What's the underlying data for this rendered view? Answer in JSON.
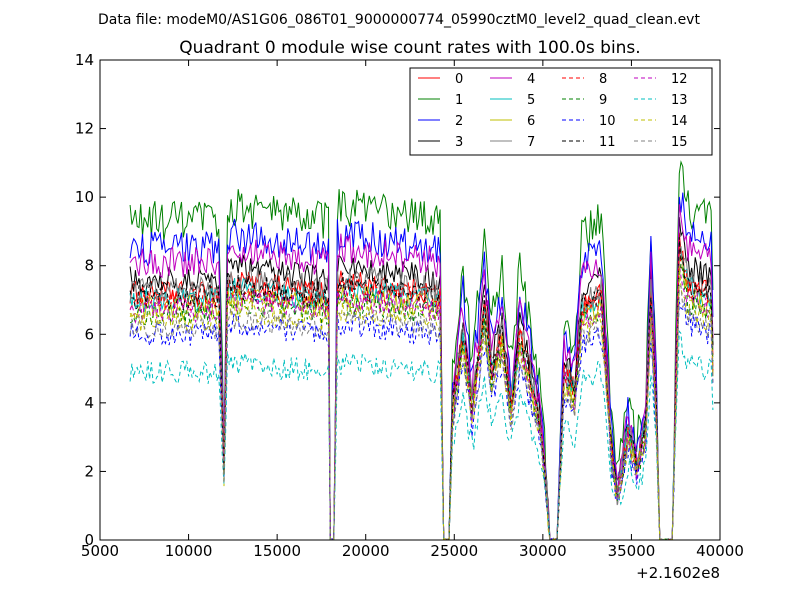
{
  "suptitle": "Data file: modeM0/AS1G06_086T01_9000000774_05990cztM0_level2_quad_clean.evt",
  "chart_data": {
    "type": "line",
    "title": "Quadrant 0 module wise count rates with 100.0s bins.",
    "xlabel": "",
    "ylabel": "",
    "xlim": [
      5000,
      40000
    ],
    "ylim": [
      0,
      14
    ],
    "x_offset_label": "+2.1602e8",
    "x_ticks": [
      5000,
      10000,
      15000,
      20000,
      25000,
      30000,
      35000,
      40000
    ],
    "x_tick_labels": [
      "5000",
      "10000",
      "15000",
      "20000",
      "25000",
      "30000",
      "35000",
      "40000"
    ],
    "y_ticks": [
      0,
      2,
      4,
      6,
      8,
      10,
      12,
      14
    ],
    "y_tick_labels": [
      "0",
      "2",
      "4",
      "6",
      "8",
      "10",
      "12",
      "14"
    ],
    "grid": false,
    "legend_position": "top-right",
    "x_start": 6700,
    "bin_size": 100,
    "series": [
      {
        "name": "0",
        "color": "#ff0000",
        "dash": "solid",
        "baseline": 7.2,
        "amplitude": 0.35
      },
      {
        "name": "1",
        "color": "#008000",
        "dash": "solid",
        "baseline": 9.3,
        "amplitude": 0.6
      },
      {
        "name": "2",
        "color": "#0000ff",
        "dash": "solid",
        "baseline": 8.5,
        "amplitude": 0.5
      },
      {
        "name": "3",
        "color": "#000000",
        "dash": "solid",
        "baseline": 7.6,
        "amplitude": 0.4
      },
      {
        "name": "4",
        "color": "#bf00bf",
        "dash": "solid",
        "baseline": 8.1,
        "amplitude": 0.45
      },
      {
        "name": "5",
        "color": "#00bfbf",
        "dash": "solid",
        "baseline": 7.0,
        "amplitude": 0.35
      },
      {
        "name": "6",
        "color": "#bfbf00",
        "dash": "solid",
        "baseline": 6.8,
        "amplitude": 0.35
      },
      {
        "name": "7",
        "color": "#808080",
        "dash": "solid",
        "baseline": 7.3,
        "amplitude": 0.4
      },
      {
        "name": "8",
        "color": "#ff0000",
        "dash": "dashed",
        "baseline": 7.0,
        "amplitude": 0.35
      },
      {
        "name": "9",
        "color": "#008000",
        "dash": "dashed",
        "baseline": 6.6,
        "amplitude": 0.35
      },
      {
        "name": "10",
        "color": "#0000ff",
        "dash": "dashed",
        "baseline": 6.0,
        "amplitude": 0.35
      },
      {
        "name": "11",
        "color": "#000000",
        "dash": "dashed",
        "baseline": 7.1,
        "amplitude": 0.4
      },
      {
        "name": "12",
        "color": "#bf00bf",
        "dash": "dashed",
        "baseline": 6.7,
        "amplitude": 0.35
      },
      {
        "name": "13",
        "color": "#00bfbf",
        "dash": "dashed",
        "baseline": 4.9,
        "amplitude": 0.35
      },
      {
        "name": "14",
        "color": "#bfbf00",
        "dash": "dashed",
        "baseline": 6.4,
        "amplitude": 0.35
      },
      {
        "name": "15",
        "color": "#808080",
        "dash": "dashed",
        "baseline": 6.2,
        "amplitude": 0.35
      }
    ],
    "shape": [
      [
        6700,
        1.0
      ],
      [
        11700,
        1.0
      ],
      [
        11900,
        0.55
      ],
      [
        12000,
        0.3
      ],
      [
        12200,
        1.05
      ],
      [
        17900,
        1.0
      ],
      [
        18000,
        0.0
      ],
      [
        18200,
        0.0
      ],
      [
        18400,
        1.05
      ],
      [
        24200,
        1.0
      ],
      [
        24400,
        0.0
      ],
      [
        24700,
        0.0
      ],
      [
        24900,
        0.55
      ],
      [
        25500,
        0.85
      ],
      [
        26000,
        0.55
      ],
      [
        26700,
        0.95
      ],
      [
        27100,
        0.7
      ],
      [
        27700,
        0.85
      ],
      [
        28200,
        0.55
      ],
      [
        28700,
        0.85
      ],
      [
        29200,
        0.7
      ],
      [
        29800,
        0.5
      ],
      [
        30100,
        0.3
      ],
      [
        30400,
        0.0
      ],
      [
        30800,
        0.0
      ],
      [
        31200,
        0.7
      ],
      [
        31800,
        0.6
      ],
      [
        32200,
        0.95
      ],
      [
        33300,
        1.0
      ],
      [
        33900,
        0.35
      ],
      [
        34200,
        0.2
      ],
      [
        34500,
        0.3
      ],
      [
        34800,
        0.45
      ],
      [
        35300,
        0.3
      ],
      [
        35800,
        0.45
      ],
      [
        36100,
        1.0
      ],
      [
        36400,
        0.55
      ],
      [
        36600,
        0.0
      ],
      [
        37300,
        0.0
      ],
      [
        37700,
        1.2
      ],
      [
        38200,
        1.05
      ],
      [
        39500,
        1.0
      ],
      [
        39600,
        0.75
      ]
    ]
  },
  "colors": {
    "axes": "#000000",
    "legend_border": "#000000",
    "background": "#ffffff"
  }
}
